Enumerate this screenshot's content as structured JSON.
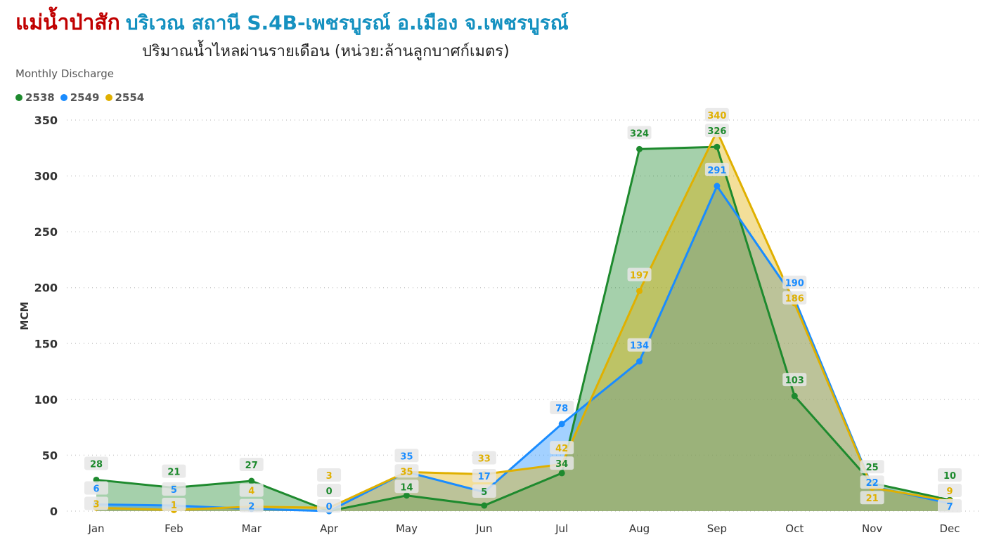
{
  "header": {
    "title_red": "แม่น้ำป่าสัก",
    "title_blue": "บริเวณ สถานี S.4B-เพชรบูรณ์ อ.เมือง จ.เพชรบูรณ์",
    "subtitle": "ปริมาณน้ำไหลผ่านรายเดือน (หน่วย:ล้านลูกบาศก์เมตร)"
  },
  "chart_data": {
    "type": "area",
    "title": "Monthly Discharge",
    "xlabel": "",
    "ylabel": "MCM",
    "ylim": [
      0,
      350
    ],
    "yticks": [
      0,
      50,
      100,
      150,
      200,
      250,
      300,
      350
    ],
    "grid": true,
    "legend_position": "top-left",
    "categories": [
      "Jan",
      "Feb",
      "Mar",
      "Apr",
      "May",
      "Jun",
      "Jul",
      "Aug",
      "Sep",
      "Oct",
      "Nov",
      "Dec"
    ],
    "series": [
      {
        "name": "2538",
        "color": "#1e8a2e",
        "values": [
          28,
          21,
          27,
          0,
          14,
          5,
          34,
          324,
          326,
          103,
          25,
          10
        ]
      },
      {
        "name": "2549",
        "color": "#1a8cff",
        "values": [
          6,
          5,
          2,
          0,
          35,
          17,
          78,
          134,
          291,
          190,
          22,
          7
        ]
      },
      {
        "name": "2554",
        "color": "#e0b000",
        "values": [
          3,
          1,
          4,
          3,
          35,
          33,
          42,
          197,
          340,
          186,
          21,
          9
        ]
      }
    ]
  }
}
